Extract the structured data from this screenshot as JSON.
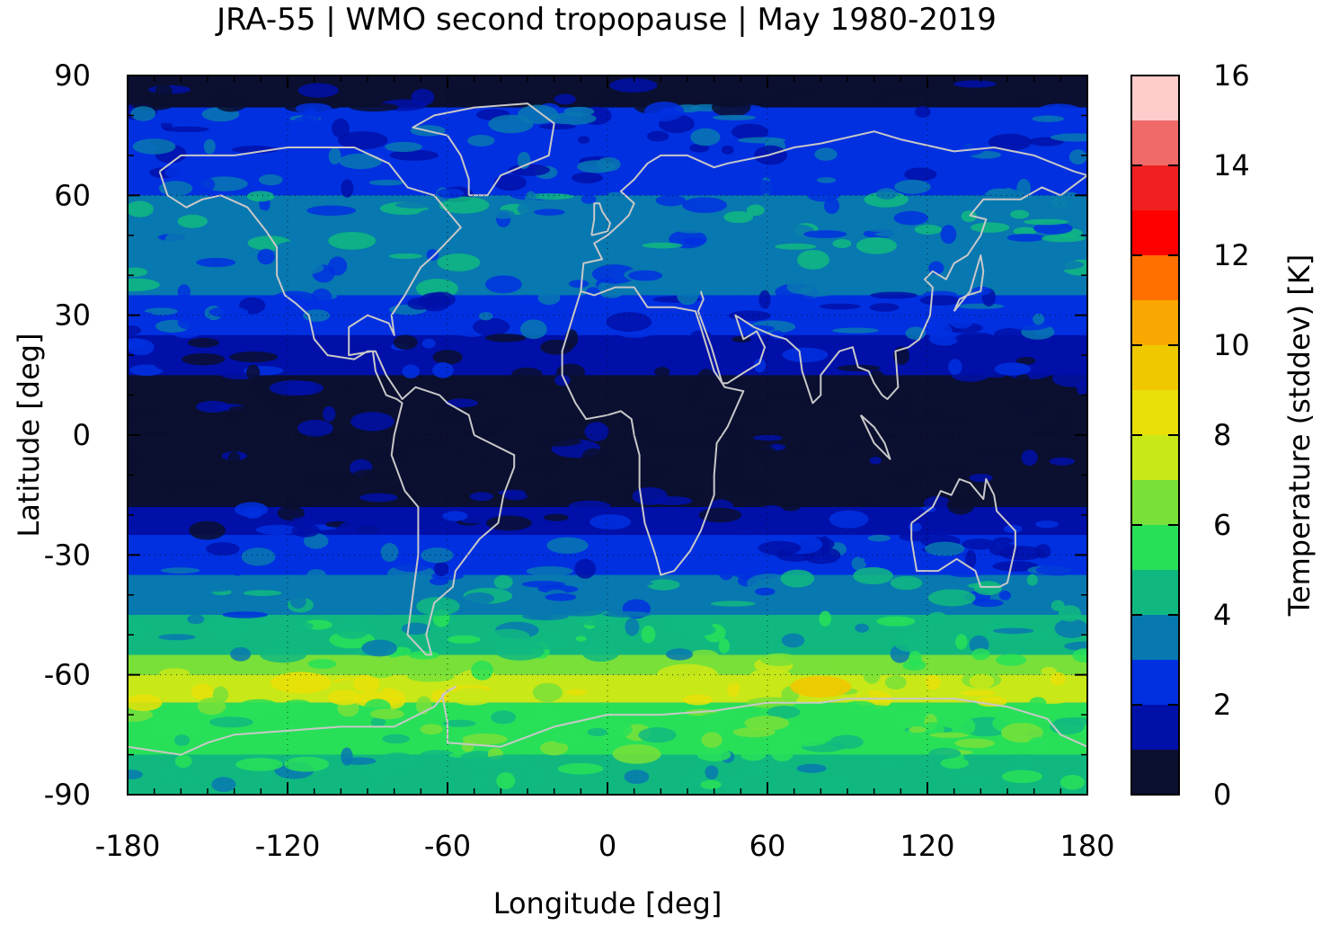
{
  "title": "JRA-55 | WMO second tropopause | May 1980-2019",
  "chart_data": {
    "type": "heatmap",
    "title": "JRA-55 | WMO second tropopause | May 1980-2019",
    "xlabel": "Longitude [deg]",
    "ylabel": "Latitude [deg]",
    "xlim": [
      -180,
      180
    ],
    "ylim": [
      -90,
      90
    ],
    "xticks": [
      "-180",
      "-120",
      "-60",
      "0",
      "60",
      "120",
      "180"
    ],
    "yticks": [
      "90",
      "60",
      "30",
      "0",
      "-30",
      "-60",
      "-90"
    ],
    "grid": true,
    "colorbar": {
      "label": "Temperature (stddev) [K]",
      "range": [
        0,
        16
      ],
      "step": 1,
      "ticks": [
        "0",
        "2",
        "4",
        "6",
        "8",
        "10",
        "12",
        "14",
        "16"
      ],
      "colors": [
        "#0b0f30",
        "#0010a8",
        "#0030e0",
        "#0878b0",
        "#10b880",
        "#28e058",
        "#78e038",
        "#c8e818",
        "#e8e008",
        "#f0c800",
        "#f8a800",
        "#ff7000",
        "#ff0000",
        "#f02020",
        "#f06a6a",
        "#ffcccc"
      ]
    },
    "zonal_bands": [
      {
        "lat": [
          82,
          90
        ],
        "value": 0.5
      },
      {
        "lat": [
          65,
          82
        ],
        "value": 2.5
      },
      {
        "lat": [
          60,
          65
        ],
        "value": 2.7
      },
      {
        "lat": [
          35,
          60
        ],
        "value": 3.5
      },
      {
        "lat": [
          25,
          35
        ],
        "value": 2.5
      },
      {
        "lat": [
          15,
          25
        ],
        "value": 1.5
      },
      {
        "lat": [
          -18,
          15
        ],
        "value": 0.5
      },
      {
        "lat": [
          -25,
          -18
        ],
        "value": 1.5
      },
      {
        "lat": [
          -35,
          -25
        ],
        "value": 2.5
      },
      {
        "lat": [
          -45,
          -35
        ],
        "value": 3.5
      },
      {
        "lat": [
          -55,
          -45
        ],
        "value": 4.5
      },
      {
        "lat": [
          -60,
          -55
        ],
        "value": 6.5
      },
      {
        "lat": [
          -67,
          -60
        ],
        "value": 7.5
      },
      {
        "lat": [
          -80,
          -67
        ],
        "value": 5.5
      },
      {
        "lat": [
          -90,
          -80
        ],
        "value": 4.5
      }
    ],
    "local_maxima": [
      {
        "lon": -115,
        "lat": -62,
        "value": 8.5
      },
      {
        "lon": 80,
        "lat": -63,
        "value": 9.5
      },
      {
        "lon": 30,
        "lat": -60,
        "value": 7.5
      }
    ]
  }
}
